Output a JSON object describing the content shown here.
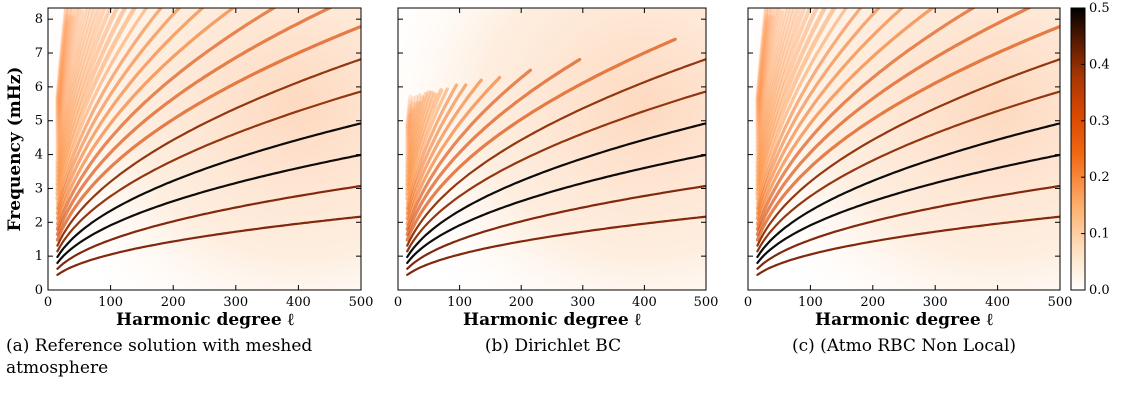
{
  "chart_data": [
    {
      "type": "heatmap",
      "caption": "(a) Reference solution with meshed atmosphere",
      "xlabel": "Harmonic degree ℓ",
      "ylabel": "Frequency (mHz)",
      "xlim": [
        0,
        500
      ],
      "ylim": [
        0,
        8.33
      ],
      "xticks": [
        0,
        100,
        200,
        300,
        400,
        500
      ],
      "yticks": [
        0,
        1,
        2,
        3,
        4,
        5,
        6,
        7,
        8
      ],
      "ridge_series": [
        {
          "n": 0,
          "points": [
            [
              100,
              1.35
            ],
            [
              200,
              1.85
            ],
            [
              300,
              2.25
            ],
            [
              400,
              2.55
            ],
            [
              500,
              2.82
            ]
          ]
        },
        {
          "n": 1,
          "points": [
            [
              100,
              1.7
            ],
            [
              200,
              2.25
            ],
            [
              300,
              2.7
            ],
            [
              400,
              3.06
            ],
            [
              500,
              3.38
            ]
          ]
        },
        {
          "n": 2,
          "points": [
            [
              100,
              2.05
            ],
            [
              200,
              2.65
            ],
            [
              300,
              3.2
            ],
            [
              400,
              3.62
            ],
            [
              500,
              4.0
            ]
          ]
        },
        {
          "n": 3,
          "points": [
            [
              100,
              2.4
            ],
            [
              200,
              3.05
            ],
            [
              300,
              3.62
            ],
            [
              400,
              4.12
            ],
            [
              500,
              4.55
            ]
          ]
        },
        {
          "n": 4,
          "points": [
            [
              100,
              2.7
            ],
            [
              200,
              3.45
            ],
            [
              300,
              4.08
            ],
            [
              400,
              4.6
            ],
            [
              500,
              5.05
            ]
          ]
        }
      ],
      "upper_cutoff": "none"
    },
    {
      "type": "heatmap",
      "caption": "(b) Dirichlet BC",
      "xlabel": "Harmonic degree ℓ",
      "ylabel": "",
      "xlim": [
        0,
        500
      ],
      "ylim": [
        0,
        8.33
      ],
      "xticks": [
        0,
        100,
        200,
        300,
        400,
        500
      ],
      "yticks": [
        0,
        1,
        2,
        3,
        4,
        5,
        6,
        7,
        8
      ],
      "ridge_series": [
        {
          "n": 0,
          "points": [
            [
              100,
              1.35
            ],
            [
              200,
              1.85
            ],
            [
              300,
              2.25
            ],
            [
              400,
              2.55
            ],
            [
              500,
              2.82
            ]
          ]
        },
        {
          "n": 1,
          "points": [
            [
              100,
              1.7
            ],
            [
              200,
              2.25
            ],
            [
              300,
              2.7
            ],
            [
              400,
              3.06
            ],
            [
              500,
              3.38
            ]
          ]
        },
        {
          "n": 2,
          "points": [
            [
              100,
              2.05
            ],
            [
              200,
              2.65
            ],
            [
              300,
              3.2
            ],
            [
              400,
              3.62
            ],
            [
              500,
              4.0
            ]
          ]
        },
        {
          "n": 3,
          "points": [
            [
              100,
              2.4
            ],
            [
              200,
              3.05
            ],
            [
              300,
              3.62
            ],
            [
              400,
              4.12
            ],
            [
              500,
              4.55
            ]
          ]
        },
        {
          "n": 4,
          "points": [
            [
              100,
              2.7
            ],
            [
              200,
              3.45
            ],
            [
              300,
              4.08
            ],
            [
              400,
              4.6
            ],
            [
              500,
              5.05
            ]
          ]
        }
      ],
      "upper_cutoff": "ridges end near 7.6 mHz at ℓ=500 and about 5.7 mHz at ℓ=0"
    },
    {
      "type": "heatmap",
      "caption": "(c) (Atmo RBC Non Local)",
      "xlabel": "Harmonic degree ℓ",
      "ylabel": "",
      "xlim": [
        0,
        500
      ],
      "ylim": [
        0,
        8.33
      ],
      "xticks": [
        0,
        100,
        200,
        300,
        400,
        500
      ],
      "yticks": [
        0,
        1,
        2,
        3,
        4,
        5,
        6,
        7,
        8
      ],
      "ridge_series": [
        {
          "n": 0,
          "points": [
            [
              100,
              1.35
            ],
            [
              200,
              1.85
            ],
            [
              300,
              2.25
            ],
            [
              400,
              2.55
            ],
            [
              500,
              2.82
            ]
          ]
        },
        {
          "n": 1,
          "points": [
            [
              100,
              1.7
            ],
            [
              200,
              2.25
            ],
            [
              300,
              2.7
            ],
            [
              400,
              3.06
            ],
            [
              500,
              3.38
            ]
          ]
        },
        {
          "n": 2,
          "points": [
            [
              100,
              2.05
            ],
            [
              200,
              2.65
            ],
            [
              300,
              3.2
            ],
            [
              400,
              3.62
            ],
            [
              500,
              4.0
            ]
          ]
        },
        {
          "n": 3,
          "points": [
            [
              100,
              2.4
            ],
            [
              200,
              3.05
            ],
            [
              300,
              3.62
            ],
            [
              400,
              4.12
            ],
            [
              500,
              4.55
            ]
          ]
        },
        {
          "n": 4,
          "points": [
            [
              100,
              2.7
            ],
            [
              200,
              3.45
            ],
            [
              300,
              4.08
            ],
            [
              400,
              4.6
            ],
            [
              500,
              5.05
            ]
          ]
        }
      ],
      "upper_cutoff": "none"
    }
  ],
  "colorbar": {
    "min": 0,
    "max": 0.5,
    "ticks": [
      "0.0",
      "0.1",
      "0.2",
      "0.3",
      "0.4",
      "0.5"
    ],
    "colormap": [
      "#ffffff",
      "#fde0c2",
      "#fdae6b",
      "#f16913",
      "#d94801",
      "#a63603",
      "#7f2704",
      "#000000"
    ]
  }
}
